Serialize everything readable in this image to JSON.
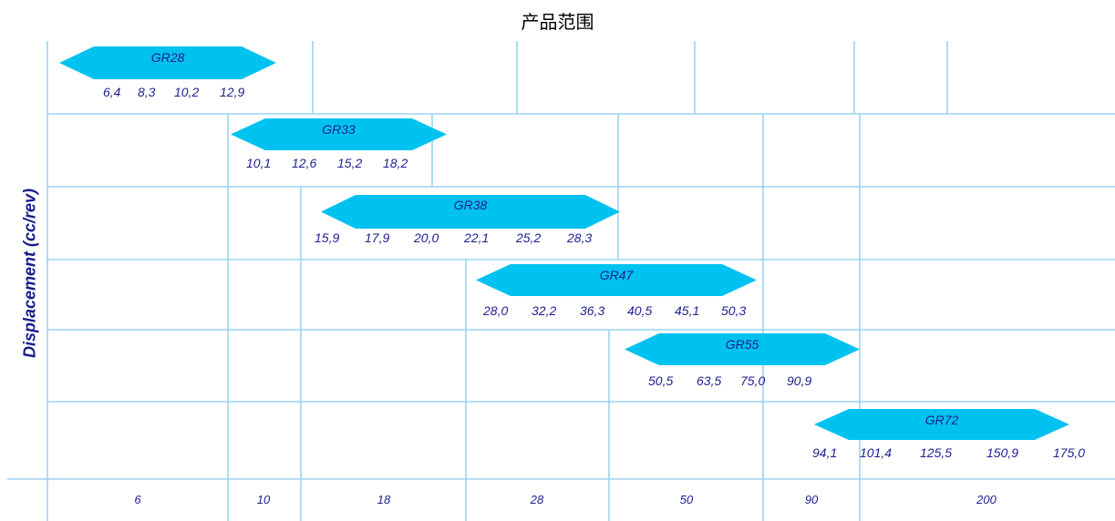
{
  "chart_data": {
    "type": "range",
    "title": "产品范围",
    "ylabel": "Displacement (cc/rev)",
    "xlabel": "",
    "x_ticks": [
      "6",
      "10",
      "18",
      "28",
      "50",
      "90",
      "200"
    ],
    "series": [
      {
        "name": "GR28",
        "values": [
          "6,4",
          "8,3",
          "10,2",
          "12,9"
        ]
      },
      {
        "name": "GR33",
        "values": [
          "10,1",
          "12,6",
          "15,2",
          "18,2"
        ]
      },
      {
        "name": "GR38",
        "values": [
          "15,9",
          "17,9",
          "20,0",
          "22,1",
          "25,2",
          "28,3"
        ]
      },
      {
        "name": "GR47",
        "values": [
          "28,0",
          "32,2",
          "36,3",
          "40,5",
          "45,1",
          "50,3"
        ]
      },
      {
        "name": "GR55",
        "values": [
          "50,5",
          "63,5",
          "75,0",
          "90,9"
        ]
      },
      {
        "name": "GR72",
        "values": [
          "94,1",
          "101,4",
          "125,5",
          "150,9",
          "175,0"
        ]
      }
    ],
    "grid": true,
    "colors": {
      "band": "#00c2f0",
      "grid": "#9bd4f2",
      "text": "#1f1f8f"
    }
  }
}
